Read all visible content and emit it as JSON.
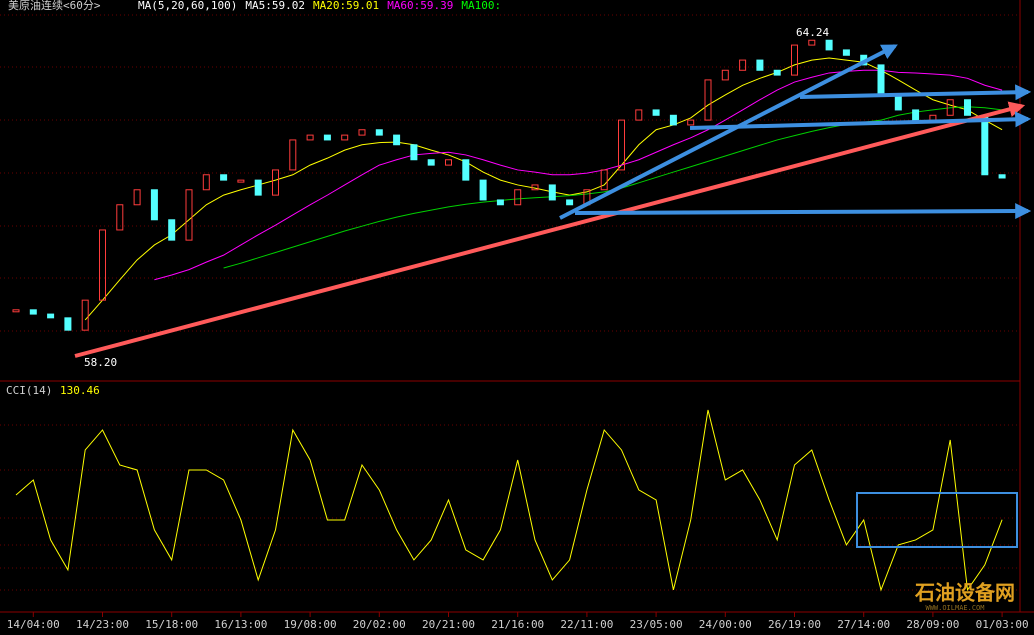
{
  "chart_data": [
    {
      "type": "price",
      "title": "美原油连续<60分>",
      "legend_texts": [
        {
          "text": "MA(5,20,60,100)",
          "color": "#ffffff"
        },
        {
          "text": "MA5:59.02",
          "color": "#ffffff"
        },
        {
          "text": "MA20:59.01",
          "color": "#ffff00"
        },
        {
          "text": "MA60:59.39",
          "color": "#ff00ff"
        },
        {
          "text": "MA100:",
          "color": "#00ff00"
        }
      ],
      "high_label": "64.24",
      "low_label": "58.20",
      "ylim": [
        57.77,
        64.6
      ],
      "up_color": "#ff3c3c",
      "down_color": "#54ffff",
      "close": [
        59.08,
        59.0,
        58.93,
        58.7,
        59.26,
        60.57,
        61.04,
        61.32,
        60.76,
        60.38,
        61.32,
        61.6,
        61.5,
        61.5,
        61.22,
        61.69,
        62.25,
        62.34,
        62.25,
        62.34,
        62.44,
        62.34,
        62.16,
        61.88,
        61.78,
        61.88,
        61.5,
        61.13,
        61.04,
        61.32,
        61.41,
        61.13,
        61.04,
        61.32,
        61.69,
        62.62,
        62.81,
        62.71,
        62.53,
        62.62,
        63.37,
        63.55,
        63.74,
        63.55,
        63.46,
        64.02,
        64.11,
        63.93,
        63.83,
        63.65,
        63.09,
        62.81,
        62.62,
        62.71,
        63.0,
        62.71,
        61.6,
        61.54
      ],
      "series": [
        {
          "color": "#ffff00",
          "values": [
            null,
            null,
            null,
            null,
            58.89,
            59.26,
            59.64,
            60.01,
            60.29,
            60.48,
            60.76,
            61.04,
            61.22,
            61.32,
            61.41,
            61.5,
            61.6,
            61.78,
            61.91,
            62.06,
            62.16,
            62.2,
            62.21,
            62.16,
            62.06,
            61.97,
            61.84,
            61.65,
            61.5,
            61.41,
            61.35,
            61.28,
            61.22,
            61.28,
            61.41,
            61.78,
            62.16,
            62.44,
            62.53,
            62.66,
            62.9,
            63.09,
            63.27,
            63.4,
            63.51,
            63.65,
            63.74,
            63.78,
            63.74,
            63.7,
            63.55,
            63.37,
            63.18,
            63.0,
            62.9,
            62.81,
            62.62,
            62.44
          ]
        },
        {
          "color": "#ff00ff",
          "values": [
            null,
            null,
            null,
            null,
            null,
            null,
            null,
            null,
            59.64,
            59.73,
            59.83,
            59.97,
            60.1,
            60.29,
            60.48,
            60.66,
            60.85,
            61.04,
            61.22,
            61.41,
            61.6,
            61.78,
            61.88,
            61.97,
            62.0,
            62.02,
            61.97,
            61.88,
            61.78,
            61.69,
            61.65,
            61.6,
            61.6,
            61.63,
            61.69,
            61.78,
            61.88,
            62.02,
            62.16,
            62.29,
            62.44,
            62.62,
            62.81,
            63.0,
            63.18,
            63.33,
            63.42,
            63.5,
            63.53,
            63.55,
            63.55,
            63.51,
            63.5,
            63.48,
            63.46,
            63.4,
            63.27,
            63.18
          ]
        },
        {
          "color": "#00d000",
          "values": [
            null,
            null,
            null,
            null,
            null,
            null,
            null,
            null,
            null,
            null,
            null,
            null,
            59.86,
            59.95,
            60.05,
            60.15,
            60.25,
            60.35,
            60.45,
            60.55,
            60.64,
            60.73,
            60.81,
            60.88,
            60.94,
            61.0,
            61.05,
            61.09,
            61.12,
            61.15,
            61.17,
            61.19,
            61.21,
            61.24,
            61.28,
            61.35,
            61.45,
            61.55,
            61.65,
            61.75,
            61.85,
            61.95,
            62.05,
            62.15,
            62.25,
            62.33,
            62.41,
            62.48,
            62.54,
            62.58,
            62.62,
            62.71,
            62.77,
            62.81,
            62.85,
            62.87,
            62.85,
            62.81
          ]
        }
      ]
    },
    {
      "type": "cci",
      "title": "CCI(14)",
      "current_value": 130.46,
      "ylim": [
        -45,
        358
      ],
      "color": "#ffff00",
      "categories": [
        null,
        "14/04:00",
        null,
        null,
        null,
        "14/23:00",
        null,
        null,
        null,
        "15/18:00",
        null,
        null,
        null,
        "16/13:00",
        null,
        null,
        null,
        "19/08:00",
        null,
        null,
        null,
        "20/02:00",
        null,
        null,
        null,
        "20/21:00",
        null,
        null,
        null,
        "21/16:00",
        null,
        null,
        null,
        "22/11:00",
        null,
        null,
        null,
        "23/05:00",
        null,
        null,
        null,
        "24/00:00",
        null,
        null,
        null,
        "26/19:00",
        null,
        null,
        null,
        "27/14:00",
        null,
        null,
        null,
        "28/09:00",
        null,
        null,
        null,
        "01/03:00"
      ],
      "values": [
        177.5,
        206,
        92,
        35,
        263,
        301,
        234.5,
        225,
        111,
        54,
        225,
        225,
        206,
        130,
        16,
        111,
        301,
        244,
        130,
        130,
        234.5,
        187,
        111,
        54,
        92,
        168,
        73,
        54,
        111,
        244,
        92,
        16,
        54,
        187,
        301,
        263,
        187,
        168,
        -3,
        130,
        339,
        206,
        225,
        168,
        92,
        234.5,
        263,
        168,
        82.5,
        130,
        -3,
        82.5,
        92,
        111,
        282,
        -3,
        44.5,
        130.46
      ]
    }
  ],
  "watermark": {
    "name": "石油设备网",
    "url": "WWW.OILMAE.COM"
  }
}
